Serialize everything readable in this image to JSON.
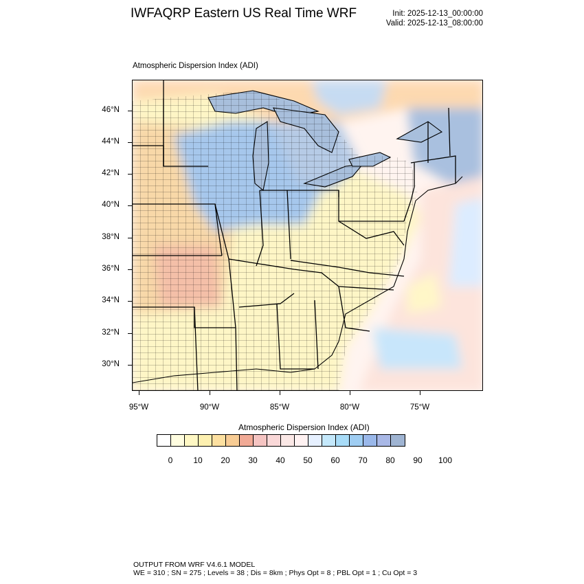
{
  "title": "IWFAQRP Eastern US Real Time WRF",
  "init": "Init: 2025-12-13_00:00:00",
  "valid": "Valid: 2025-12-13_08:00:00",
  "plot_label": "Atmospheric Dispersion Index   (ADI)",
  "lat_labels": [
    "46°N",
    "44°N",
    "42°N",
    "40°N",
    "38°N",
    "36°N",
    "34°N",
    "32°N",
    "30°N"
  ],
  "lon_labels": [
    "95°W",
    "90°W",
    "85°W",
    "80°W",
    "75°W"
  ],
  "colorbar": {
    "title": "Atmospheric Dispersion Index  (ADI)",
    "labels": [
      "0",
      "10",
      "20",
      "30",
      "40",
      "50",
      "60",
      "70",
      "80",
      "90",
      "100"
    ],
    "colors": [
      "#ffffff",
      "#fffde0",
      "#fff8c4",
      "#fdf0b0",
      "#fde0a0",
      "#f8cc94",
      "#f1aa96",
      "#f5c4c2",
      "#fad8d8",
      "#fbe8e6",
      "#fff2f2",
      "#e6f0ff",
      "#c4e8fb",
      "#a8dcf8",
      "#9fcdf2",
      "#9ab8ea",
      "#a9b8e6",
      "#9fb4d2"
    ]
  },
  "footer_line1": "OUTPUT FROM WRF V4.6.1 MODEL",
  "footer_line2": "WE = 310 ; SN = 275 ; Levels = 38 ; Dis = 8km ; Phys Opt = 8 ; PBL Opt = 1 ; Cu Opt = 3"
}
